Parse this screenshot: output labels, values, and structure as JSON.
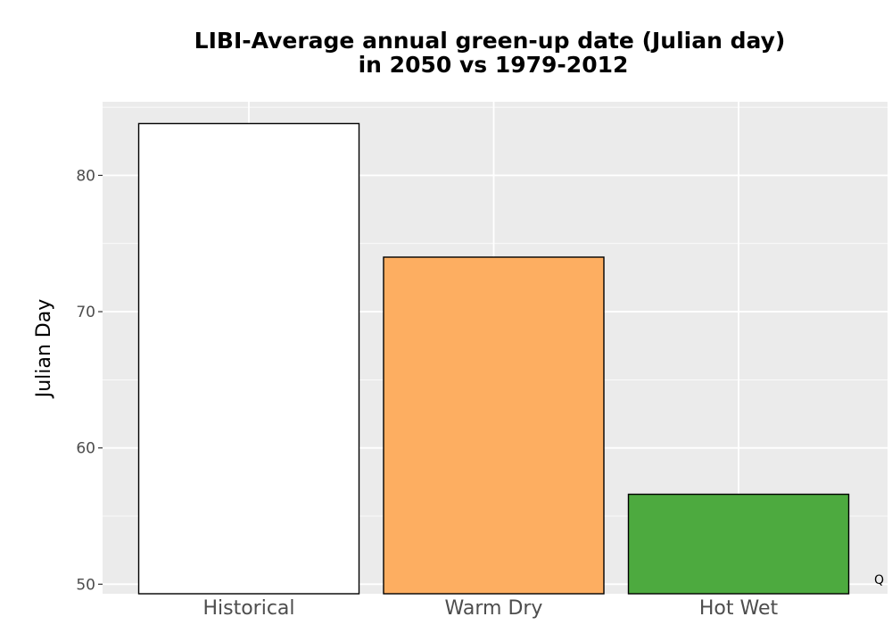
{
  "chart_data": {
    "type": "bar",
    "title_line1": "LIBI-Average annual green-up date (Julian day)",
    "title_line2": "in 2050 vs 1979-2012",
    "xlabel": "",
    "ylabel": "Julian Day",
    "categories": [
      "Historical",
      "Warm Dry",
      "Hot Wet"
    ],
    "values": [
      83.8,
      74.0,
      56.6
    ],
    "colors": [
      "#ffffff",
      "#fdae61",
      "#4daa3f"
    ],
    "yticks": [
      50,
      60,
      70,
      80
    ],
    "ytick_labels": [
      "50",
      "60",
      "70",
      "80"
    ],
    "ylim": [
      49.3,
      85.4
    ],
    "grid": true,
    "legend": "none"
  },
  "corner_mark": "Q"
}
